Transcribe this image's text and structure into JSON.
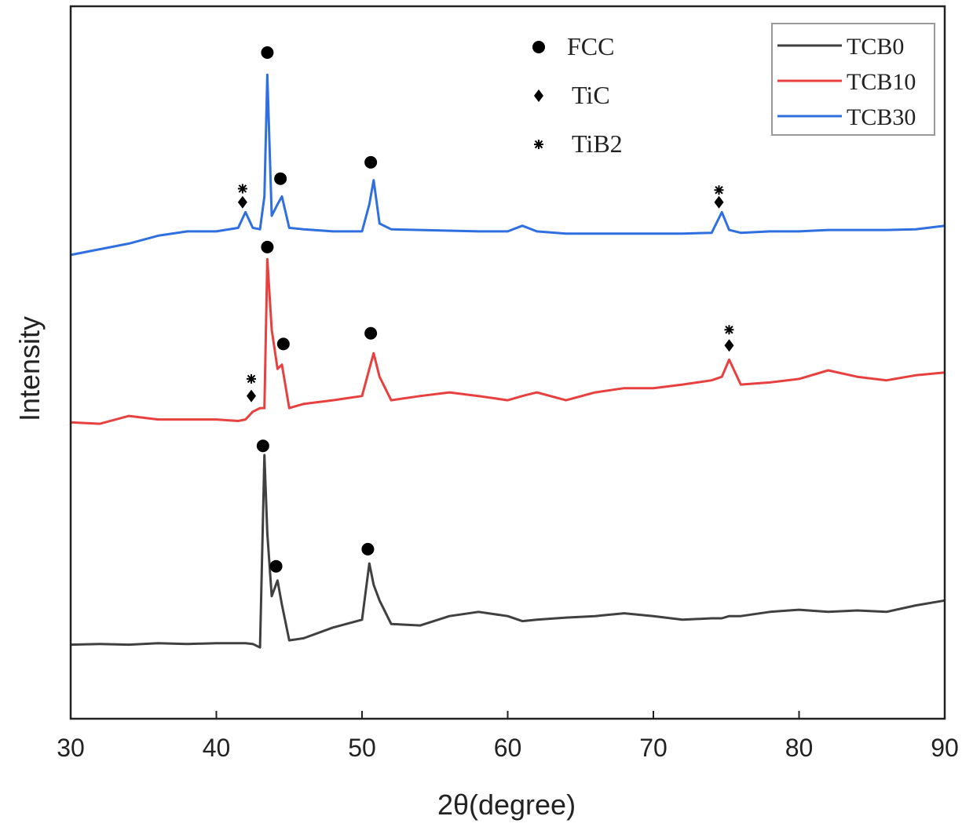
{
  "chart_data": {
    "type": "line",
    "x_label": "2θ(degree)",
    "y_label": "Intensity",
    "xlim": [
      30,
      90
    ],
    "xticks": [
      30,
      40,
      50,
      60,
      70,
      80,
      90
    ],
    "ylim": [
      0,
      100
    ],
    "x": [
      30,
      32,
      34,
      36,
      38,
      40,
      41.5,
      42,
      42.5,
      43,
      43.3,
      43.5,
      43.8,
      44.2,
      44.5,
      45,
      46,
      48,
      50,
      50.5,
      50.8,
      51.2,
      52,
      54,
      56,
      58,
      60,
      61,
      62,
      64,
      66,
      68,
      70,
      72,
      74,
      74.7,
      75.2,
      76,
      78,
      80,
      82,
      84,
      86,
      88,
      90
    ],
    "series": [
      {
        "name": "TCB0",
        "color": "#404040",
        "values": [
          10.4,
          10.5,
          10.4,
          10.6,
          10.5,
          10.6,
          10.6,
          10.6,
          10.5,
          10,
          37,
          26,
          17.2,
          19.4,
          16,
          11,
          11.3,
          12.8,
          13.9,
          21.8,
          18.8,
          16.6,
          13.3,
          13.1,
          14.4,
          15,
          14.4,
          13.7,
          13.9,
          14.2,
          14.4,
          14.8,
          14.4,
          13.9,
          14.1,
          14.1,
          14.4,
          14.4,
          15,
          15.3,
          15,
          15.2,
          15,
          15.9,
          16.6
        ]
      },
      {
        "name": "TCB10",
        "color": "#e8403f",
        "values": [
          41.6,
          41.4,
          42.5,
          42,
          42,
          42,
          41.8,
          42,
          43.1,
          43.6,
          43.6,
          64.5,
          54.6,
          49.1,
          49.7,
          43.6,
          44.2,
          44.7,
          45.3,
          49.1,
          51.3,
          48,
          44.7,
          45.3,
          45.8,
          45.3,
          44.7,
          45.3,
          45.8,
          44.7,
          45.8,
          46.4,
          46.4,
          46.9,
          47.5,
          48,
          50.4,
          46.9,
          47.2,
          47.7,
          48.9,
          48,
          47.5,
          48.2,
          48.6
        ]
      },
      {
        "name": "TCB30",
        "color": "#2f6fe0",
        "values": [
          65.1,
          65.9,
          66.7,
          67.8,
          68.4,
          68.4,
          68.9,
          71.1,
          68.9,
          68.7,
          73.3,
          90.4,
          70.6,
          72.2,
          73.3,
          68.9,
          68.7,
          68.4,
          68.4,
          72.2,
          75.6,
          69.5,
          68.7,
          68.6,
          68.5,
          68.4,
          68.4,
          69.2,
          68.4,
          68.1,
          68.1,
          68.1,
          68.1,
          68.1,
          68.2,
          71.1,
          68.6,
          68.2,
          68.4,
          68.4,
          68.6,
          68.6,
          68.6,
          68.7,
          69.2
        ]
      }
    ],
    "legend_position": "upper right",
    "phases": [
      {
        "name": "FCC",
        "symbol": "circle"
      },
      {
        "name": "TiC",
        "symbol": "diamond"
      },
      {
        "name": "TiB2",
        "symbol": "asterisk"
      }
    ],
    "peak_markers": [
      {
        "symbol": "circle",
        "x": 43.5,
        "y": 93.5
      },
      {
        "symbol": "circle",
        "x": 44.4,
        "y": 75.8
      },
      {
        "symbol": "circle",
        "x": 50.6,
        "y": 78.1
      },
      {
        "symbol": "asterisk",
        "x": 41.8,
        "y": 74.4
      },
      {
        "symbol": "diamond",
        "x": 41.8,
        "y": 72.5
      },
      {
        "symbol": "asterisk",
        "x": 74.5,
        "y": 74.2
      },
      {
        "symbol": "diamond",
        "x": 74.5,
        "y": 72.5
      },
      {
        "symbol": "circle",
        "x": 43.5,
        "y": 66.2
      },
      {
        "symbol": "circle",
        "x": 44.6,
        "y": 52.6
      },
      {
        "symbol": "circle",
        "x": 50.6,
        "y": 54.1
      },
      {
        "symbol": "asterisk",
        "x": 42.4,
        "y": 47.7
      },
      {
        "symbol": "diamond",
        "x": 42.4,
        "y": 45.3
      },
      {
        "symbol": "asterisk",
        "x": 75.2,
        "y": 54.6
      },
      {
        "symbol": "diamond",
        "x": 75.2,
        "y": 52.4
      },
      {
        "symbol": "circle",
        "x": 43.2,
        "y": 38.3
      },
      {
        "symbol": "circle",
        "x": 44.1,
        "y": 21.4
      },
      {
        "symbol": "circle",
        "x": 50.4,
        "y": 23.8
      }
    ]
  }
}
